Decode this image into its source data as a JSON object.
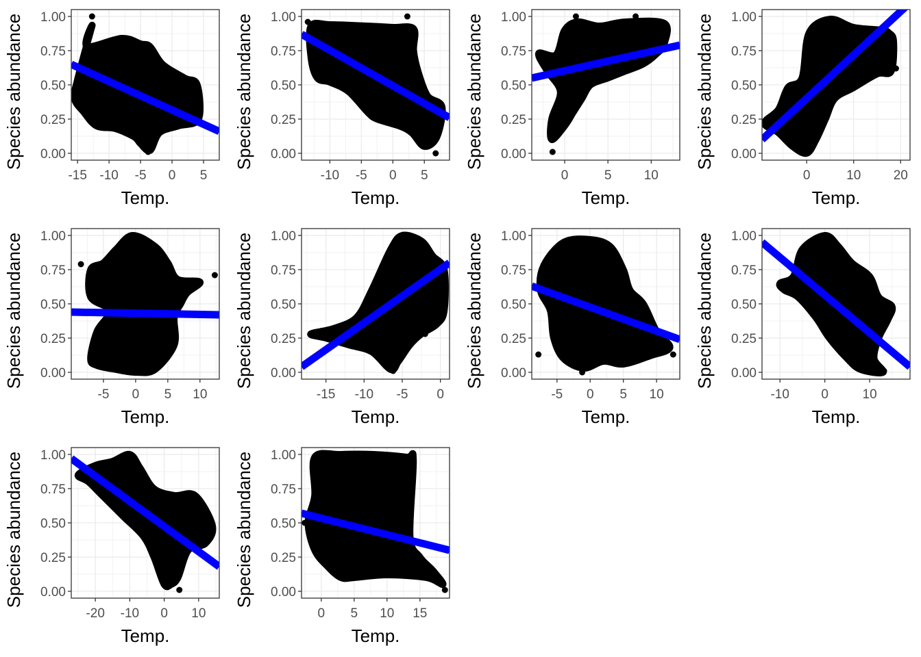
{
  "chart_data": [
    {
      "type": "scatter",
      "xlabel": "Temp.",
      "ylabel": "Species abundance",
      "xlim": [
        -16,
        7.5
      ],
      "ylim": [
        -0.05,
        1.05
      ],
      "xticks": [
        -15,
        -10,
        -5,
        0,
        5
      ],
      "xtick_labels": [
        "-15",
        "-10",
        "-5",
        "0",
        "5"
      ],
      "yticks": [
        0,
        0.25,
        0.5,
        0.75,
        1
      ],
      "ytick_labels": [
        "0.00",
        "0.25",
        "0.50",
        "0.75",
        "1.00"
      ],
      "grid": true,
      "point_cloud": [
        [
          -15.5,
          0.4
        ],
        [
          -15,
          0.54
        ],
        [
          -12.7,
          0.93
        ],
        [
          -13.5,
          0.78
        ],
        [
          -8,
          0.84
        ],
        [
          -5,
          0.8
        ],
        [
          -3.5,
          0.78
        ],
        [
          -1.5,
          0.65
        ],
        [
          2,
          0.55
        ],
        [
          4,
          0.5
        ],
        [
          4.2,
          0.25
        ],
        [
          1,
          0.2
        ],
        [
          -2,
          0.15
        ],
        [
          -3.5,
          0.02
        ],
        [
          -5,
          0.07
        ],
        [
          -6,
          0.12
        ],
        [
          -9,
          0.18
        ],
        [
          -12,
          0.2
        ],
        [
          -14,
          0.3
        ]
      ],
      "outliers": [
        [
          -12.7,
          1.0
        ],
        [
          -3.8,
          0.01
        ],
        [
          -15.5,
          0.42
        ],
        [
          4.3,
          0.22
        ]
      ],
      "fit_line": {
        "x": [
          -16,
          7.5
        ],
        "y": [
          0.65,
          0.16
        ],
        "color": "#0000ff"
      }
    },
    {
      "type": "scatter",
      "xlabel": "Temp.",
      "ylabel": "Species abundance",
      "xlim": [
        -14.5,
        9
      ],
      "ylim": [
        -0.05,
        1.05
      ],
      "xticks": [
        -10,
        -5,
        0,
        5
      ],
      "xtick_labels": [
        "-10",
        "-5",
        "0",
        "5"
      ],
      "yticks": [
        0,
        0.25,
        0.5,
        0.75,
        1
      ],
      "ytick_labels": [
        "0.00",
        "0.25",
        "0.50",
        "0.75",
        "1.00"
      ],
      "grid": true,
      "point_cloud": [
        [
          -13,
          0.93
        ],
        [
          -10,
          0.94
        ],
        [
          -4,
          0.93
        ],
        [
          0,
          0.92
        ],
        [
          3.3,
          0.91
        ],
        [
          3.3,
          0.75
        ],
        [
          4,
          0.6
        ],
        [
          5.5,
          0.42
        ],
        [
          7.8,
          0.34
        ],
        [
          7,
          0.12
        ],
        [
          5,
          0.05
        ],
        [
          3,
          0.15
        ],
        [
          1,
          0.2
        ],
        [
          -2.5,
          0.25
        ],
        [
          -4,
          0.3
        ],
        [
          -7,
          0.45
        ],
        [
          -10,
          0.52
        ],
        [
          -12,
          0.55
        ],
        [
          -13,
          0.7
        ]
      ],
      "outliers": [
        [
          -13.5,
          0.96
        ],
        [
          2.3,
          1.0
        ],
        [
          6.8,
          0.0
        ]
      ],
      "fit_line": {
        "x": [
          -14.5,
          9
        ],
        "y": [
          0.87,
          0.26
        ],
        "color": "#0000ff"
      }
    },
    {
      "type": "scatter",
      "xlabel": "Temp.",
      "ylabel": "Species abundance",
      "xlim": [
        -3.8,
        13.3
      ],
      "ylim": [
        -0.05,
        1.05
      ],
      "xticks": [
        0,
        5,
        10
      ],
      "xtick_labels": [
        "0",
        "5",
        "10"
      ],
      "yticks": [
        0,
        0.25,
        0.5,
        0.75,
        1
      ],
      "ytick_labels": [
        "0.00",
        "0.25",
        "0.50",
        "0.75",
        "1.00"
      ],
      "grid": true,
      "point_cloud": [
        [
          -3,
          0.73
        ],
        [
          -1,
          0.72
        ],
        [
          0,
          0.9
        ],
        [
          1.5,
          0.96
        ],
        [
          4,
          0.93
        ],
        [
          7,
          0.96
        ],
        [
          11.5,
          0.95
        ],
        [
          11.5,
          0.8
        ],
        [
          10.5,
          0.72
        ],
        [
          9,
          0.65
        ],
        [
          7,
          0.6
        ],
        [
          5,
          0.55
        ],
        [
          3,
          0.5
        ],
        [
          2,
          0.4
        ],
        [
          1,
          0.3
        ],
        [
          0,
          0.2
        ],
        [
          -1.5,
          0.1
        ],
        [
          -1.5,
          0.25
        ],
        [
          -0.5,
          0.45
        ],
        [
          -2,
          0.6
        ]
      ],
      "outliers": [
        [
          -1.4,
          0.01
        ],
        [
          1.3,
          1.0
        ],
        [
          8.2,
          1.0
        ]
      ],
      "fit_line": {
        "x": [
          -3.8,
          13.3
        ],
        "y": [
          0.55,
          0.79
        ],
        "color": "#0000ff"
      }
    },
    {
      "type": "scatter",
      "xlabel": "Temp.",
      "ylabel": "Species abundance",
      "xlim": [
        -9.5,
        22
      ],
      "ylim": [
        -0.05,
        1.05
      ],
      "xticks": [
        0,
        10,
        20
      ],
      "xtick_labels": [
        "0",
        "10",
        "20"
      ],
      "yticks": [
        0,
        0.25,
        0.5,
        0.75,
        1
      ],
      "ytick_labels": [
        "0.00",
        "0.25",
        "0.50",
        "0.75",
        "1.00"
      ],
      "grid": true,
      "point_cloud": [
        [
          -9,
          0.22
        ],
        [
          -6,
          0.32
        ],
        [
          -4,
          0.48
        ],
        [
          -1,
          0.55
        ],
        [
          0.5,
          0.88
        ],
        [
          5,
          0.98
        ],
        [
          10,
          0.92
        ],
        [
          16,
          0.9
        ],
        [
          17.5,
          0.88
        ],
        [
          18.5,
          0.82
        ],
        [
          18,
          0.6
        ],
        [
          15,
          0.58
        ],
        [
          10,
          0.48
        ],
        [
          6,
          0.4
        ],
        [
          4,
          0.25
        ],
        [
          2,
          0.1
        ],
        [
          0,
          0.0
        ],
        [
          -3,
          0.05
        ],
        [
          -6,
          0.15
        ]
      ],
      "outliers": [
        [
          -9,
          0.23
        ],
        [
          19,
          0.62
        ]
      ],
      "fit_line": {
        "x": [
          -9.5,
          22
        ],
        "y": [
          0.1,
          1.1
        ],
        "color": "#0000ff"
      }
    },
    {
      "type": "scatter",
      "xlabel": "Temp.",
      "ylabel": "Species abundance",
      "xlim": [
        -10,
        13
      ],
      "ylim": [
        -0.05,
        1.05
      ],
      "xticks": [
        -5,
        0,
        5,
        10
      ],
      "xtick_labels": [
        "-5",
        "0",
        "5",
        "10"
      ],
      "yticks": [
        0,
        0.25,
        0.5,
        0.75,
        1
      ],
      "ytick_labels": [
        "0.00",
        "0.25",
        "0.50",
        "0.75",
        "1.00"
      ],
      "grid": true,
      "point_cloud": [
        [
          -7,
          0.75
        ],
        [
          -5,
          0.8
        ],
        [
          -3,
          0.9
        ],
        [
          -0.5,
          1.0
        ],
        [
          3,
          0.92
        ],
        [
          5,
          0.8
        ],
        [
          6.5,
          0.68
        ],
        [
          10,
          0.66
        ],
        [
          8,
          0.58
        ],
        [
          7,
          0.5
        ],
        [
          6,
          0.4
        ],
        [
          6,
          0.2
        ],
        [
          3,
          0.02
        ],
        [
          0,
          0.0
        ],
        [
          -3,
          0.02
        ],
        [
          -6,
          0.05
        ],
        [
          -7,
          0.1
        ],
        [
          -6,
          0.3
        ],
        [
          -4,
          0.45
        ],
        [
          -7,
          0.55
        ]
      ],
      "outliers": [
        [
          -8.5,
          0.79
        ],
        [
          12.3,
          0.71
        ],
        [
          -7,
          0.1
        ]
      ],
      "fit_line": {
        "x": [
          -10,
          13
        ],
        "y": [
          0.44,
          0.42
        ],
        "color": "#0000ff"
      }
    },
    {
      "type": "scatter",
      "xlabel": "Temp.",
      "ylabel": "Species abundance",
      "xlim": [
        -18.2,
        1.2
      ],
      "ylim": [
        -0.05,
        1.05
      ],
      "xticks": [
        -15,
        -10,
        -5,
        0
      ],
      "xtick_labels": [
        "-15",
        "-10",
        "-5",
        "0"
      ],
      "yticks": [
        0,
        0.25,
        0.5,
        0.75,
        1
      ],
      "ytick_labels": [
        "0.00",
        "0.25",
        "0.50",
        "0.75",
        "1.00"
      ],
      "grid": true,
      "point_cloud": [
        [
          -17,
          0.28
        ],
        [
          -14,
          0.32
        ],
        [
          -11,
          0.4
        ],
        [
          -9,
          0.6
        ],
        [
          -6.5,
          0.9
        ],
        [
          -5,
          1.0
        ],
        [
          -2.5,
          0.96
        ],
        [
          -1,
          0.85
        ],
        [
          0.5,
          0.75
        ],
        [
          0.5,
          0.45
        ],
        [
          -0.5,
          0.35
        ],
        [
          -2.5,
          0.28
        ],
        [
          -4,
          0.2
        ],
        [
          -5.5,
          0.08
        ],
        [
          -6.5,
          0.02
        ],
        [
          -9,
          0.15
        ],
        [
          -12,
          0.2
        ],
        [
          -15,
          0.25
        ]
      ],
      "outliers": [
        [
          -6.2,
          0.01
        ],
        [
          -2,
          0.28
        ]
      ],
      "fit_line": {
        "x": [
          -18.2,
          1.2
        ],
        "y": [
          0.04,
          0.8
        ],
        "color": "#0000ff"
      }
    },
    {
      "type": "scatter",
      "xlabel": "Temp.",
      "ylabel": "Species abundance",
      "xlim": [
        -8.8,
        13.5
      ],
      "ylim": [
        -0.05,
        1.05
      ],
      "xticks": [
        -5,
        0,
        5,
        10
      ],
      "xtick_labels": [
        "-5",
        "0",
        "5",
        "10"
      ],
      "yticks": [
        0,
        0.25,
        0.5,
        0.75,
        1
      ],
      "ytick_labels": [
        "0.00",
        "0.25",
        "0.50",
        "0.75",
        "1.00"
      ],
      "grid": true,
      "point_cloud": [
        [
          -7,
          0.78
        ],
        [
          -4,
          0.95
        ],
        [
          0,
          0.97
        ],
        [
          3,
          0.92
        ],
        [
          5,
          0.75
        ],
        [
          6,
          0.6
        ],
        [
          8,
          0.5
        ],
        [
          10,
          0.3
        ],
        [
          12,
          0.18
        ],
        [
          9,
          0.12
        ],
        [
          5,
          0.06
        ],
        [
          2,
          0.08
        ],
        [
          -1,
          0.03
        ],
        [
          -4,
          0.1
        ],
        [
          -5.5,
          0.25
        ],
        [
          -6,
          0.45
        ],
        [
          -7.5,
          0.6
        ]
      ],
      "outliers": [
        [
          -7.8,
          0.13
        ],
        [
          -1.2,
          0.0
        ],
        [
          12.5,
          0.13
        ]
      ],
      "fit_line": {
        "x": [
          -8.8,
          13.5
        ],
        "y": [
          0.63,
          0.24
        ],
        "color": "#0000ff"
      }
    },
    {
      "type": "scatter",
      "xlabel": "Temp.",
      "ylabel": "Species abundance",
      "xlim": [
        -14,
        19
      ],
      "ylim": [
        -0.05,
        1.05
      ],
      "xticks": [
        -10,
        0,
        10
      ],
      "xtick_labels": [
        "-10",
        "0",
        "10"
      ],
      "yticks": [
        0,
        0.25,
        0.5,
        0.75,
        1
      ],
      "ytick_labels": [
        "0.00",
        "0.25",
        "0.50",
        "0.75",
        "1.00"
      ],
      "grid": true,
      "point_cloud": [
        [
          -10,
          0.65
        ],
        [
          -7,
          0.7
        ],
        [
          -5,
          0.9
        ],
        [
          0,
          1.0
        ],
        [
          3,
          0.92
        ],
        [
          6,
          0.8
        ],
        [
          10,
          0.7
        ],
        [
          12,
          0.55
        ],
        [
          15,
          0.48
        ],
        [
          14,
          0.38
        ],
        [
          12,
          0.25
        ],
        [
          11,
          0.1
        ],
        [
          13,
          0.0
        ],
        [
          8,
          0.02
        ],
        [
          5,
          0.1
        ],
        [
          1,
          0.25
        ],
        [
          -2,
          0.4
        ],
        [
          -6,
          0.55
        ],
        [
          -9,
          0.6
        ]
      ],
      "outliers": [
        [
          13.2,
          0.01
        ]
      ],
      "fit_line": {
        "x": [
          -14,
          19
        ],
        "y": [
          0.95,
          0.04
        ],
        "color": "#0000ff"
      }
    },
    {
      "type": "scatter",
      "xlabel": "Temp.",
      "ylabel": "Species abundance",
      "xlim": [
        -27,
        16
      ],
      "ylim": [
        -0.05,
        1.05
      ],
      "xticks": [
        -20,
        -10,
        0,
        10
      ],
      "xtick_labels": [
        "-20",
        "-10",
        "0",
        "10"
      ],
      "yticks": [
        0,
        0.25,
        0.5,
        0.75,
        1
      ],
      "ytick_labels": [
        "0.00",
        "0.25",
        "0.50",
        "0.75",
        "1.00"
      ],
      "grid": true,
      "point_cloud": [
        [
          -25,
          0.85
        ],
        [
          -20,
          0.92
        ],
        [
          -15,
          0.95
        ],
        [
          -10,
          1.0
        ],
        [
          -7,
          0.9
        ],
        [
          -3,
          0.75
        ],
        [
          3,
          0.7
        ],
        [
          9,
          0.7
        ],
        [
          14,
          0.48
        ],
        [
          12,
          0.35
        ],
        [
          7,
          0.3
        ],
        [
          4,
          0.1
        ],
        [
          2,
          0.05
        ],
        [
          0,
          0.05
        ],
        [
          -3,
          0.25
        ],
        [
          -6,
          0.4
        ],
        [
          -12,
          0.55
        ],
        [
          -18,
          0.7
        ],
        [
          -22,
          0.8
        ]
      ],
      "outliers": [
        [
          4.4,
          0.01
        ]
      ],
      "fit_line": {
        "x": [
          -27,
          16
        ],
        "y": [
          0.97,
          0.18
        ],
        "color": "#0000ff"
      }
    },
    {
      "type": "scatter",
      "xlabel": "Temp.",
      "ylabel": "Species abundance",
      "xlim": [
        -3,
        19.5
      ],
      "ylim": [
        -0.05,
        1.05
      ],
      "xticks": [
        0,
        5,
        10,
        15
      ],
      "xtick_labels": [
        "0",
        "5",
        "10",
        "15"
      ],
      "yticks": [
        0,
        0.25,
        0.5,
        0.75,
        1
      ],
      "ytick_labels": [
        "0.00",
        "0.25",
        "0.50",
        "0.75",
        "1.00"
      ],
      "grid": true,
      "point_cloud": [
        [
          -1,
          0.98
        ],
        [
          3,
          1.0
        ],
        [
          8,
          1.0
        ],
        [
          13,
          0.98
        ],
        [
          14,
          0.96
        ],
        [
          13.5,
          0.4
        ],
        [
          15,
          0.25
        ],
        [
          17,
          0.15
        ],
        [
          18.5,
          0.05
        ],
        [
          16,
          0.1
        ],
        [
          10,
          0.12
        ],
        [
          5,
          0.1
        ],
        [
          3,
          0.1
        ],
        [
          1,
          0.18
        ],
        [
          -1,
          0.3
        ],
        [
          -2,
          0.5
        ],
        [
          -1,
          0.7
        ]
      ],
      "outliers": [
        [
          18.8,
          0.01
        ],
        [
          -2.5,
          0.5
        ]
      ],
      "fit_line": {
        "x": [
          -3,
          19.5
        ],
        "y": [
          0.57,
          0.3
        ],
        "color": "#0000ff"
      }
    }
  ]
}
